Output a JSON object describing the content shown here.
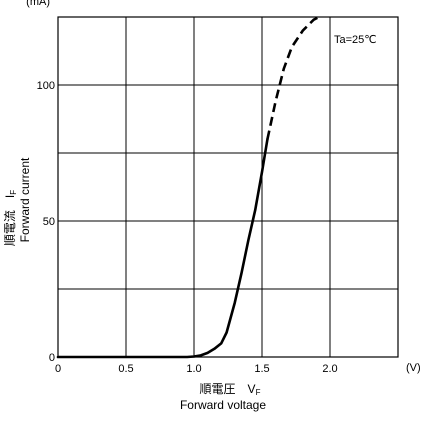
{
  "chart_data": {
    "type": "line",
    "series": [
      {
        "points": [
          {
            "x": 0.0,
            "y": 0
          },
          {
            "x": 0.5,
            "y": 0
          },
          {
            "x": 0.95,
            "y": 0
          },
          {
            "x": 1.0,
            "y": 0.2
          },
          {
            "x": 1.05,
            "y": 0.6
          },
          {
            "x": 1.1,
            "y": 1.5
          },
          {
            "x": 1.15,
            "y": 3
          },
          {
            "x": 1.2,
            "y": 5
          },
          {
            "x": 1.24,
            "y": 9
          },
          {
            "x": 1.3,
            "y": 20
          },
          {
            "x": 1.35,
            "y": 31
          },
          {
            "x": 1.4,
            "y": 43
          },
          {
            "x": 1.45,
            "y": 54
          },
          {
            "x": 1.5,
            "y": 68
          },
          {
            "x": 1.54,
            "y": 80
          }
        ],
        "extension_points": [
          {
            "x": 1.54,
            "y": 80
          },
          {
            "x": 1.6,
            "y": 94
          },
          {
            "x": 1.66,
            "y": 106
          },
          {
            "x": 1.72,
            "y": 114
          },
          {
            "x": 1.8,
            "y": 120
          },
          {
            "x": 1.88,
            "y": 124
          },
          {
            "x": 1.92,
            "y": 125
          }
        ],
        "line_color": "#000000",
        "extension_style": "dashed"
      }
    ],
    "xlim": [
      0,
      2.5
    ],
    "ylim": [
      0,
      125
    ],
    "x_ticks": [
      {
        "value": 0,
        "label": "0"
      },
      {
        "value": 0.5,
        "label": "0.5"
      },
      {
        "value": 1.0,
        "label": "1.0"
      },
      {
        "value": 1.5,
        "label": "1.5"
      },
      {
        "value": 2.0,
        "label": "2.0"
      }
    ],
    "y_ticks": [
      {
        "value": 0,
        "label": "0"
      },
      {
        "value": 50,
        "label": "50"
      },
      {
        "value": 100,
        "label": "100"
      }
    ],
    "x_grid": [
      0.5,
      1.0,
      1.5,
      2.0
    ],
    "y_grid": [
      25,
      50,
      75,
      100
    ],
    "x_unit": "(V)",
    "y_unit": "(mA)",
    "xlabel_jp": "順電圧　V",
    "xlabel_sub": "F",
    "xlabel_en": "Forward voltage",
    "ylabel_jp": "順電流　I",
    "ylabel_sub": "F",
    "ylabel_en": "Forward current",
    "annotation": "Ta=25℃",
    "grid": true,
    "frame_color": "#000000"
  }
}
